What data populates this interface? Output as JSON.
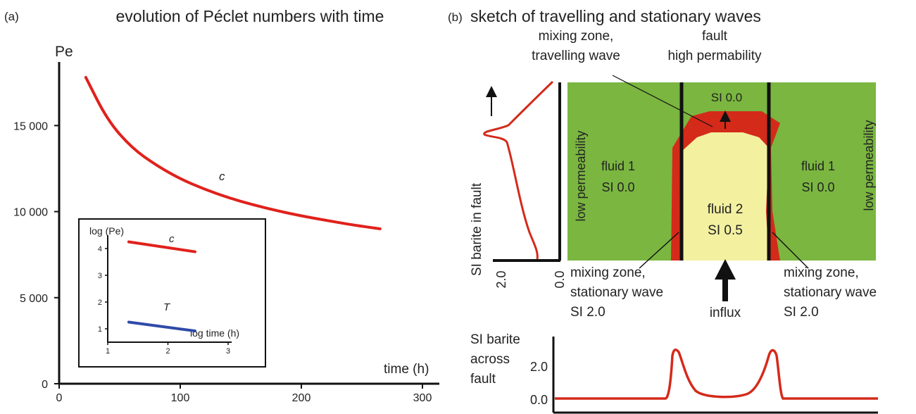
{
  "panel_a": {
    "label": "(a)",
    "title": "evolution of Péclet numbers with time",
    "ylabel": "Pe",
    "xlabel": "time (h)",
    "curve_label": "c",
    "colors": {
      "curve": "#e0211b",
      "T": "#2e4aa8"
    },
    "chart_data": {
      "type": "line",
      "x": [
        22,
        40,
        60,
        80,
        100,
        120,
        140,
        160,
        180,
        200,
        220,
        240,
        265
      ],
      "y": [
        17800,
        15300,
        13700,
        12700,
        11900,
        11300,
        10800,
        10400,
        10050,
        9750,
        9500,
        9250,
        9000
      ],
      "xlim": [
        0,
        310
      ],
      "ylim": [
        0,
        18000
      ],
      "xticks": [
        0,
        100,
        200,
        300
      ],
      "yticks": [
        0,
        5000,
        10000,
        15000
      ],
      "ytick_labels": [
        "0",
        "5 000",
        "10 000",
        "15 000"
      ],
      "xtick_labels": [
        "0",
        "100",
        "200",
        "300"
      ]
    },
    "inset": {
      "ylabel": "log (Pe)",
      "xlabel": "log time (h)",
      "series_c_label": "c",
      "series_T_label": "T",
      "yticks": [
        "1",
        "2",
        "3",
        "4"
      ],
      "xticks": [
        "1",
        "2",
        "3"
      ],
      "chart_data": {
        "type": "line",
        "xlim": [
          1,
          3
        ],
        "ylim": [
          0.5,
          4.5
        ],
        "series": [
          {
            "name": "c",
            "x": [
              1.35,
              2.45
            ],
            "y": [
              4.25,
              3.88
            ]
          },
          {
            "name": "T",
            "x": [
              1.35,
              2.45
            ],
            "y": [
              1.25,
              0.92
            ]
          }
        ]
      }
    }
  },
  "panel_b": {
    "label": "(b)",
    "title": "sketch of travelling and stationary waves",
    "colors": {
      "green": "#7ab640",
      "red": "#d42a1a",
      "yellow": "#f3f0a0"
    },
    "labels": {
      "mixing_top_1": "mixing zone,",
      "mixing_top_2": "travelling wave",
      "fault_1": "fault",
      "fault_2": "high permability",
      "si_top": "SI 0.0",
      "fluid1_left": "fluid 1",
      "fluid1_left_si": "SI 0.0",
      "fluid1_right": "fluid 1",
      "fluid1_right_si": "SI 0.0",
      "fluid2": "fluid 2",
      "fluid2_si": "SI  0.5",
      "low_perm_left": "low permeability",
      "low_perm_right": "low permeability",
      "mixing_bl_1": "mixing zone,",
      "mixing_bl_2": "stationary wave",
      "mixing_bl_3": "SI 2.0",
      "mixing_br_1": "mixing zone,",
      "mixing_br_2": "stationary wave",
      "mixing_br_3": "SI 2.0",
      "influx": "influx",
      "si_fault_axis": "SI barite in fault",
      "si_fault_20": "2.0",
      "si_fault_00": "0.0",
      "across_1": "SI barite",
      "across_2": "across",
      "across_3": "fault",
      "across_20": "2.0",
      "across_00": "0.0"
    }
  }
}
